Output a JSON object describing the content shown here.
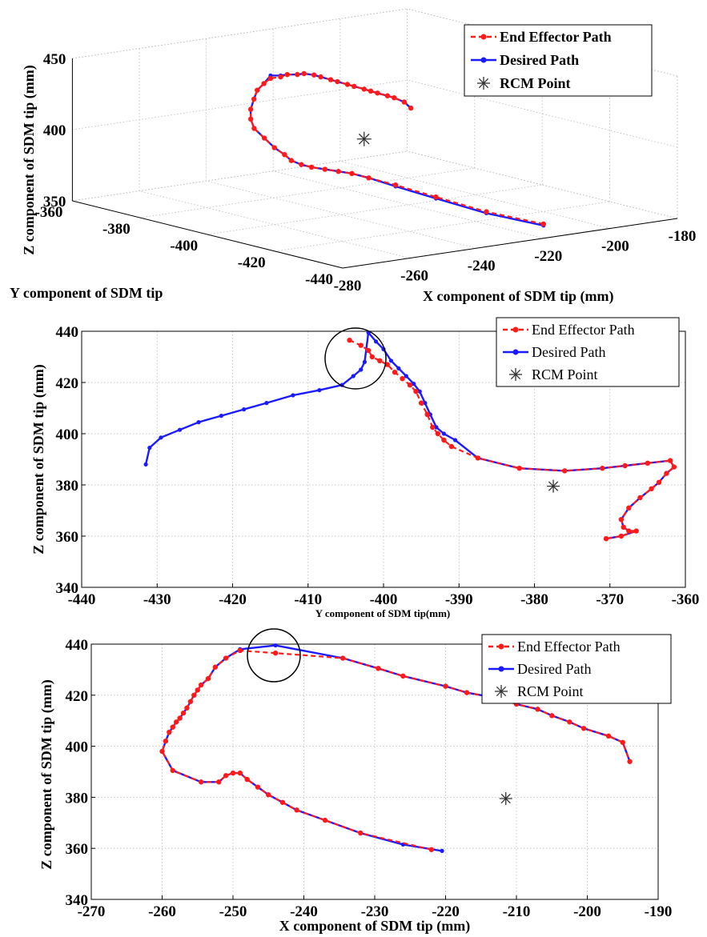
{
  "colors": {
    "end_effector": "#ff1a1a",
    "desired": "#1a1aff",
    "rcm": "#333333",
    "grid": "#b8b8b8"
  },
  "chart_data": [
    {
      "type": "line",
      "projection": "3d",
      "xlabel": "X component of SDM tip (mm)",
      "ylabel": "Y component of SDM tip",
      "zlabel": "Z component of SDM tip (mm)",
      "xlim": [
        -280,
        -180
      ],
      "ylim": [
        -440,
        -360
      ],
      "zlim": [
        350,
        450
      ],
      "x_ticks": [
        "-280",
        "-260",
        "-240",
        "-220",
        "-200",
        "-180"
      ],
      "y_ticks": [
        "-360",
        "-380",
        "-400",
        "-420",
        "-440"
      ],
      "z_ticks": [
        "350",
        "400",
        "450"
      ],
      "grid": true,
      "legend_position": "top-right",
      "series": [
        {
          "name": "End Effector Path",
          "style": "dashed-circle",
          "x": [
            -220,
            -230,
            -238,
            -244,
            -248,
            -250,
            -252,
            -254,
            -256,
            -257,
            -258,
            -258,
            -259,
            -259,
            -259,
            -258,
            -256,
            -253,
            -250,
            -247,
            -244,
            -241,
            -238,
            -235,
            -232,
            -229,
            -226,
            -223,
            -220,
            -217,
            -214,
            -211,
            -208,
            -205,
            -202,
            -199,
            -196,
            -194
          ],
          "y": [
            -440,
            -433,
            -426,
            -420,
            -416,
            -413,
            -411,
            -409,
            -407,
            -405,
            -403,
            -401,
            -399,
            -396,
            -393,
            -391,
            -389,
            -387,
            -385,
            -384,
            -383,
            -383,
            -382,
            -382,
            -381,
            -381,
            -380,
            -380,
            -379,
            -379,
            -378,
            -378,
            -377,
            -376,
            -376,
            -375,
            -375,
            -375
          ],
          "z": [
            360,
            368,
            377,
            384,
            388,
            390,
            391,
            392,
            393,
            394,
            396,
            399,
            403,
            408,
            413,
            418,
            423,
            428,
            432,
            435,
            437,
            437,
            437,
            436,
            435,
            433,
            430,
            427,
            424,
            421,
            418,
            415,
            412,
            409,
            406,
            403,
            399,
            394
          ]
        },
        {
          "name": "Desired Path",
          "x": [
            -220,
            -230,
            -238,
            -244,
            -248,
            -250,
            -252,
            -254,
            -256,
            -257,
            -258,
            -258,
            -259,
            -259,
            -259,
            -258,
            -256,
            -253,
            -250,
            -247,
            -244,
            -241,
            -238,
            -235,
            -232,
            -229,
            -226,
            -223,
            -220,
            -217,
            -214,
            -211,
            -208,
            -205,
            -202,
            -199,
            -196,
            -194
          ],
          "y": [
            -440,
            -433,
            -426,
            -420,
            -416,
            -413,
            -411,
            -409,
            -407,
            -405,
            -403,
            -401,
            -399,
            -396,
            -393,
            -391,
            -389,
            -387,
            -385,
            -384,
            -383,
            -383,
            -382,
            -382,
            -381,
            -381,
            -380,
            -380,
            -379,
            -379,
            -378,
            -378,
            -377,
            -376,
            -376,
            -375,
            -375,
            -375
          ],
          "z": [
            359,
            367,
            376,
            383,
            388,
            390,
            391,
            392,
            393,
            394,
            396,
            399,
            403,
            408,
            413,
            418,
            423,
            428,
            432,
            435,
            439,
            438,
            437,
            436,
            435,
            433,
            430,
            427,
            424,
            421,
            418,
            415,
            412,
            409,
            406,
            403,
            399,
            394
          ]
        },
        {
          "name": "RCM Point",
          "style": "star",
          "x": [
            -211
          ],
          "y": [
            -378
          ],
          "z": [
            380
          ]
        }
      ]
    },
    {
      "type": "line",
      "xlabel": "Y component of SDM tip(mm)",
      "ylabel": "Z component of SDM tip (mm)",
      "xlim": [
        -440,
        -360
      ],
      "ylim": [
        340,
        440
      ],
      "x_ticks": [
        "-440",
        "-430",
        "-420",
        "-410",
        "-400",
        "-390",
        "-380",
        "-370",
        "-360"
      ],
      "y_ticks": [
        "340",
        "360",
        "380",
        "400",
        "420",
        "440"
      ],
      "grid": true,
      "legend_position": "top-right",
      "annotation": "circle around path peak near (-403, 431)",
      "series": [
        {
          "name": "End Effector Path",
          "style": "dashed-circle",
          "x": [
            -404.5,
            -403,
            -402,
            -401.5,
            -400.5,
            -399.5,
            -398.5,
            -397.5,
            -396.5,
            -395.7,
            -395,
            -394.2,
            -393.5,
            -392.8,
            -392,
            -391,
            -387.5,
            -382,
            -376,
            -371,
            -368,
            -365,
            -362,
            -361.5,
            -362.5,
            -363.5,
            -364.5,
            -366,
            -367.5,
            -368.5,
            -368.2,
            -367.5,
            -366.5,
            -368.5,
            -370.5
          ],
          "y": [
            436.5,
            434.5,
            432.5,
            430,
            428.5,
            427,
            424,
            421.5,
            419,
            416.5,
            412,
            407.5,
            402.5,
            400,
            397.5,
            395,
            390.5,
            386.5,
            385.5,
            386.5,
            387.5,
            388.5,
            389.5,
            387,
            384.5,
            381,
            378.5,
            375,
            371,
            366.5,
            363.5,
            362,
            362,
            360,
            359
          ]
        },
        {
          "name": "Desired Path",
          "x": [
            -431.5,
            -431,
            -429.5,
            -427,
            -424.5,
            -421.5,
            -418.5,
            -415.5,
            -412,
            -408.5,
            -405.5,
            -404,
            -403,
            -402.5,
            -402,
            -401,
            -400,
            -399,
            -398,
            -397,
            -396,
            -395.2,
            -394.5,
            -393.8,
            -393,
            -392,
            -390.5,
            -387.5,
            -382,
            -376,
            -371,
            -368,
            -365,
            -362,
            -361.5,
            -362.5,
            -363.5,
            -364.5,
            -366,
            -367.5,
            -368.5,
            -368.2,
            -367.5,
            -366.5,
            -368.5,
            -370.5
          ],
          "y": [
            388,
            394.5,
            398.5,
            401.5,
            404.5,
            407,
            409.5,
            412,
            415,
            417,
            419,
            422.5,
            425,
            428,
            439.5,
            436,
            433,
            428.5,
            425.5,
            422.5,
            419.5,
            416.5,
            412,
            407.5,
            402.5,
            400,
            397.5,
            390.5,
            386.5,
            385.5,
            386.5,
            387.5,
            388.5,
            389.5,
            387,
            384.5,
            381,
            378.5,
            375,
            371,
            366.5,
            363.5,
            362,
            362,
            360,
            359
          ]
        },
        {
          "name": "RCM Point",
          "style": "star",
          "x": [
            -377.5
          ],
          "y": [
            379.5
          ]
        }
      ]
    },
    {
      "type": "line",
      "xlabel": "X component of SDM tip (mm)",
      "ylabel": "Z component of SDM tip (mm)",
      "xlim": [
        -270,
        -190
      ],
      "ylim": [
        340,
        440
      ],
      "x_ticks": [
        "-270",
        "-260",
        "-250",
        "-240",
        "-230",
        "-220",
        "-210",
        "-200",
        "-190"
      ],
      "y_ticks": [
        "340",
        "360",
        "380",
        "400",
        "420",
        "440"
      ],
      "grid": true,
      "legend_position": "top-right",
      "annotation": "circle around path peak near (-244, 437)",
      "series": [
        {
          "name": "End Effector Path",
          "style": "dashed-circle",
          "x": [
            -222,
            -232,
            -237,
            -241,
            -243,
            -245,
            -246.5,
            -248,
            -249,
            -250,
            -251,
            -252,
            -254.5,
            -258.5,
            -260,
            -259.5,
            -259,
            -258.5,
            -258,
            -257.5,
            -257,
            -256.5,
            -256,
            -255.5,
            -255,
            -254.5,
            -253.5,
            -252.5,
            -251,
            -249,
            -244,
            -234.5,
            -229.5,
            -226,
            -220,
            -217,
            -212,
            -210,
            -207,
            -205,
            -202.5,
            -200.5,
            -197,
            -195,
            -194
          ],
          "y": [
            359.5,
            366,
            371,
            375,
            378,
            381,
            384,
            387,
            389.5,
            389.5,
            388.5,
            386,
            386,
            390.5,
            398,
            402,
            405.5,
            407.5,
            409.5,
            411,
            413,
            415,
            417.5,
            420,
            422,
            424,
            426.5,
            431,
            434.5,
            437.5,
            436.5,
            434.5,
            430.5,
            427.5,
            423.5,
            421,
            418.5,
            416.5,
            414.5,
            412,
            409.5,
            407,
            404,
            401.5,
            394
          ]
        },
        {
          "name": "Desired Path",
          "x": [
            -220.5,
            -226,
            -232,
            -237,
            -241,
            -243,
            -245,
            -246.5,
            -248,
            -249,
            -250,
            -251,
            -252,
            -254.5,
            -258.5,
            -260,
            -259.5,
            -259,
            -258.5,
            -258,
            -257.5,
            -257,
            -256.5,
            -256,
            -255.5,
            -255,
            -254.5,
            -253.5,
            -252.5,
            -251,
            -249,
            -244,
            -234.5,
            -229.5,
            -226,
            -220,
            -217,
            -212,
            -210,
            -207,
            -205,
            -202.5,
            -200.5,
            -197,
            -195,
            -194
          ],
          "y": [
            359,
            361.5,
            366,
            371,
            375,
            378,
            381,
            384,
            387,
            389.5,
            389.5,
            388.5,
            386,
            386,
            390.5,
            398,
            402,
            405.5,
            407.5,
            409.5,
            411,
            413,
            415,
            417.5,
            420,
            422,
            424,
            426.5,
            431,
            434.5,
            438,
            439.5,
            434.5,
            430.5,
            427.5,
            423.5,
            421,
            418.5,
            416.5,
            414.5,
            412,
            409.5,
            407,
            404,
            401.5,
            394
          ]
        },
        {
          "name": "RCM Point",
          "style": "star",
          "x": [
            -211.5
          ],
          "y": [
            379.5
          ]
        }
      ]
    }
  ]
}
